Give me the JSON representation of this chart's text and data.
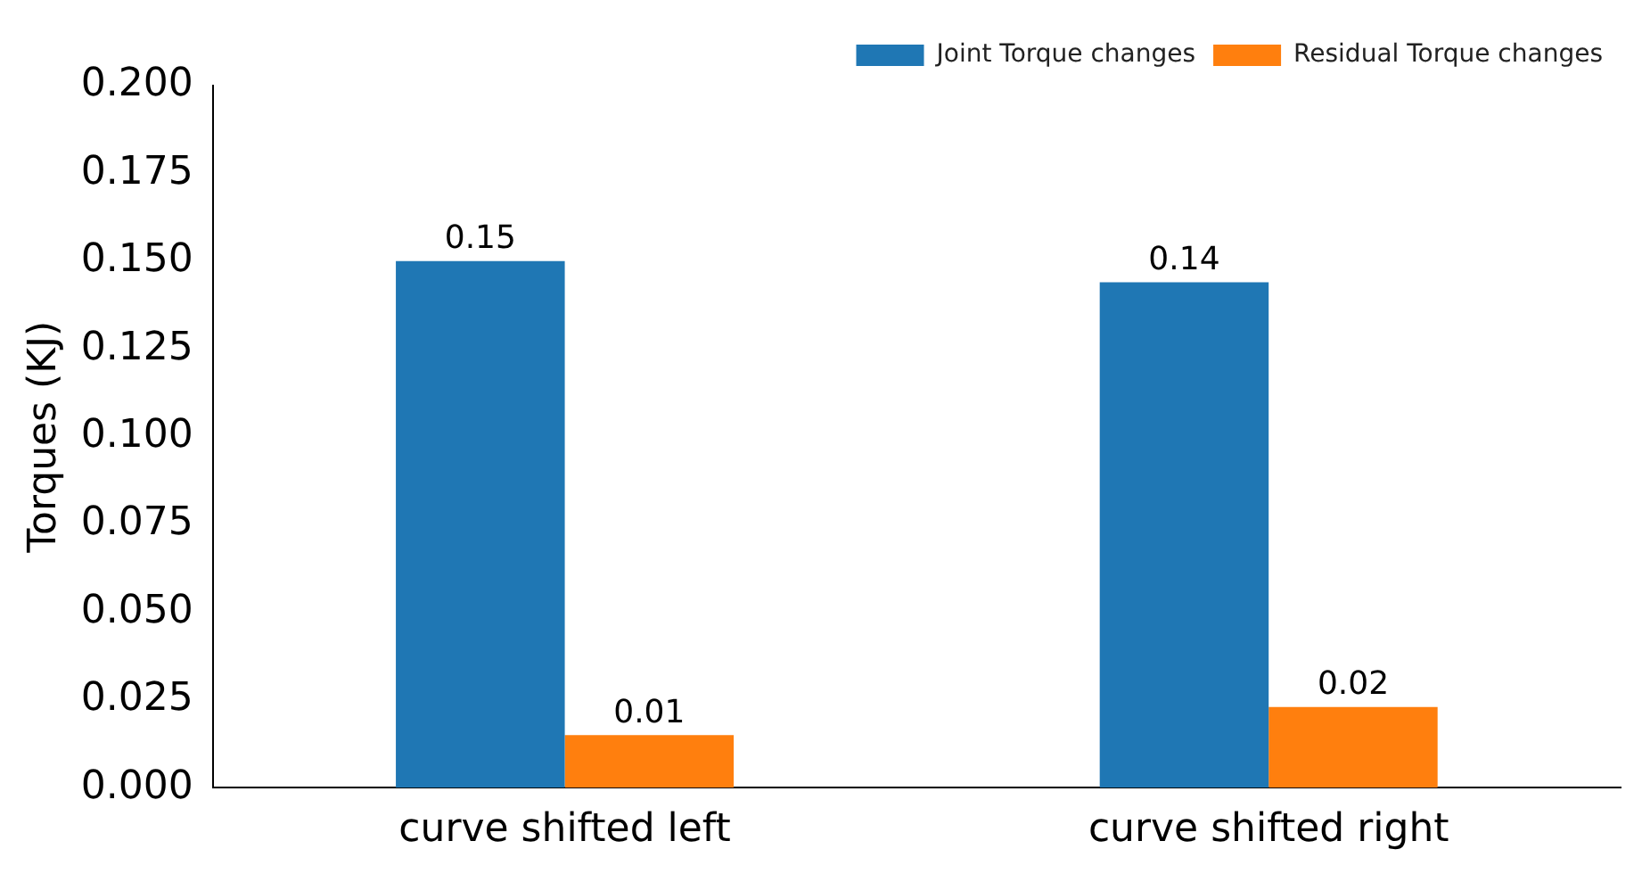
{
  "chart_data": {
    "type": "bar",
    "ylabel": "Torques (KJ)",
    "categories": [
      "curve shifted left",
      "curve shifted right"
    ],
    "series": [
      {
        "name": "Joint Torque changes",
        "color": "#1f77b4",
        "values": [
          0.15,
          0.144
        ],
        "value_labels": [
          "0.15",
          "0.14"
        ]
      },
      {
        "name": "Residual Torque changes",
        "color": "#ff7f0e",
        "values": [
          0.015,
          0.023
        ],
        "value_labels": [
          "0.01",
          "0.02"
        ]
      }
    ],
    "ylim": [
      0,
      0.2
    ],
    "yticks": [
      {
        "value": 0,
        "label": "0.000"
      },
      {
        "value": 0.025,
        "label": "0.025"
      },
      {
        "value": 0.05,
        "label": "0.050"
      },
      {
        "value": 0.075,
        "label": "0.075"
      },
      {
        "value": 0.1,
        "label": "0.100"
      },
      {
        "value": 0.125,
        "label": "0.125"
      },
      {
        "value": 0.15,
        "label": "0.150"
      },
      {
        "value": 0.175,
        "label": "0.175"
      },
      {
        "value": 0.2,
        "label": "0.200"
      }
    ],
    "grid": false,
    "legend": "top right"
  }
}
